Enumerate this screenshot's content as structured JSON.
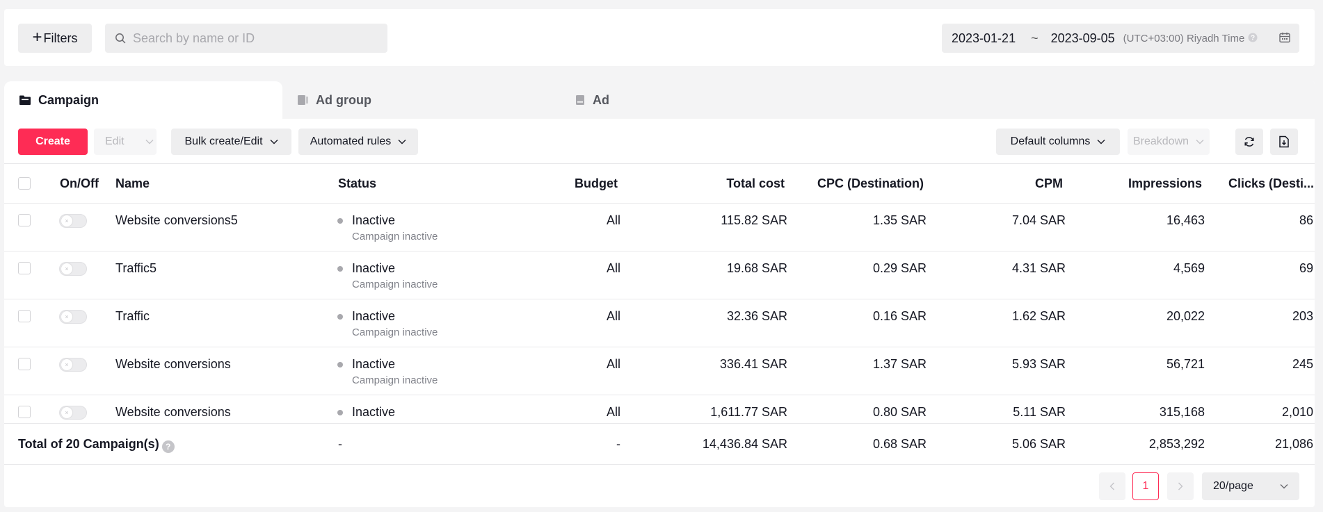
{
  "filters": {
    "label": "Filters"
  },
  "search": {
    "placeholder": "Search by name or ID"
  },
  "date_range": {
    "start": "2023-01-21",
    "separator": "~",
    "end": "2023-09-05",
    "timezone": "(UTC+03:00) Riyadh Time"
  },
  "tabs": [
    {
      "label": "Campaign",
      "active": true
    },
    {
      "label": "Ad group",
      "active": false
    },
    {
      "label": "Ad",
      "active": false
    }
  ],
  "toolbar": {
    "create": "Create",
    "edit": "Edit",
    "bulk": "Bulk create/Edit",
    "rules": "Automated rules",
    "default_columns": "Default columns",
    "breakdown": "Breakdown"
  },
  "columns": {
    "onoff": "On/Off",
    "name": "Name",
    "status": "Status",
    "budget": "Budget",
    "total_cost": "Total cost",
    "cpc": "CPC (Destination)",
    "cpm": "CPM",
    "impressions": "Impressions",
    "clicks": "Clicks (Desti..."
  },
  "rows": [
    {
      "name": "Website conversions5",
      "status": "Inactive",
      "status_detail": "Campaign inactive",
      "budget": "All",
      "total_cost": "115.82 SAR",
      "cpc": "1.35 SAR",
      "cpm": "7.04 SAR",
      "impressions": "16,463",
      "clicks": "86"
    },
    {
      "name": "Traffic5",
      "status": "Inactive",
      "status_detail": "Campaign inactive",
      "budget": "All",
      "total_cost": "19.68 SAR",
      "cpc": "0.29 SAR",
      "cpm": "4.31 SAR",
      "impressions": "4,569",
      "clicks": "69"
    },
    {
      "name": "Traffic",
      "status": "Inactive",
      "status_detail": "Campaign inactive",
      "budget": "All",
      "total_cost": "32.36 SAR",
      "cpc": "0.16 SAR",
      "cpm": "1.62 SAR",
      "impressions": "20,022",
      "clicks": "203"
    },
    {
      "name": "Website conversions",
      "status": "Inactive",
      "status_detail": "Campaign inactive",
      "budget": "All",
      "total_cost": "336.41 SAR",
      "cpc": "1.37 SAR",
      "cpm": "5.93 SAR",
      "impressions": "56,721",
      "clicks": "245"
    },
    {
      "name": "Website conversions",
      "status": "Inactive",
      "status_detail": "",
      "budget": "All",
      "total_cost": "1,611.77 SAR",
      "cpc": "0.80 SAR",
      "cpm": "5.11 SAR",
      "impressions": "315,168",
      "clicks": "2,010"
    }
  ],
  "total": {
    "label": "Total of 20 Campaign(s)",
    "status": "-",
    "budget": "-",
    "total_cost": "14,436.84 SAR",
    "cpc": "0.68 SAR",
    "cpm": "5.06 SAR",
    "impressions": "2,853,292",
    "clicks": "21,086"
  },
  "pagination": {
    "current_page": "1",
    "page_size": "20/page"
  },
  "colors": {
    "accent": "#fe2c55",
    "inactive_dot": "#a8a8ad"
  }
}
